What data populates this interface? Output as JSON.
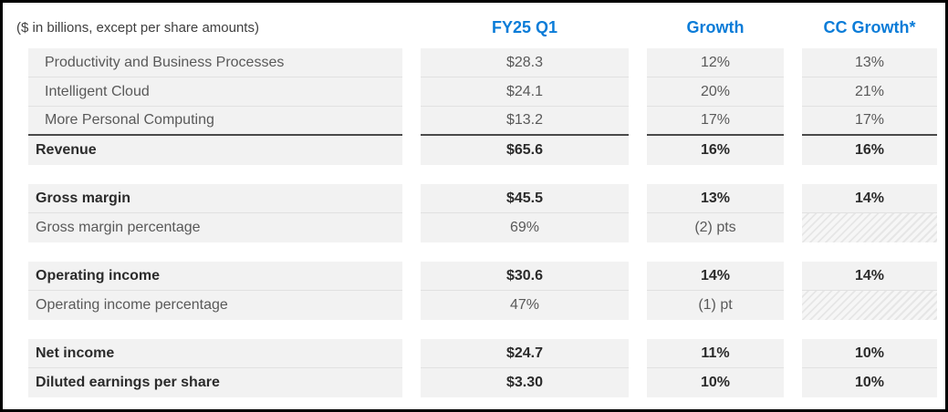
{
  "accent_color": "#0b7cd8",
  "row_background_color": "#f2f2f2",
  "chart_data": {
    "type": "table",
    "caption": "($ in billions, except per share amounts)",
    "column_headers": [
      "FY25 Q1",
      "Growth",
      "CC Growth*"
    ],
    "row_groups": [
      {
        "rows": [
          {
            "label": "Productivity and Business Processes",
            "fy25_q1": "$28.3",
            "growth": "12%",
            "cc_growth": "13%",
            "bold": false,
            "indent": true
          },
          {
            "label": "Intelligent Cloud",
            "fy25_q1": "$24.1",
            "growth": "20%",
            "cc_growth": "21%",
            "bold": false,
            "indent": true
          },
          {
            "label": "More Personal Computing",
            "fy25_q1": "$13.2",
            "growth": "17%",
            "cc_growth": "17%",
            "bold": false,
            "indent": true,
            "strong_divider_below": true
          },
          {
            "label": "Revenue",
            "fy25_q1": "$65.6",
            "growth": "16%",
            "cc_growth": "16%",
            "bold": true
          }
        ]
      },
      {
        "rows": [
          {
            "label": "Gross margin",
            "fy25_q1": "$45.5",
            "growth": "13%",
            "cc_growth": "14%",
            "bold": true
          },
          {
            "label": "Gross margin percentage",
            "fy25_q1": "69%",
            "growth": "(2) pts",
            "cc_growth": "",
            "cc_hatched": true,
            "bold": false
          }
        ]
      },
      {
        "rows": [
          {
            "label": "Operating income",
            "fy25_q1": "$30.6",
            "growth": "14%",
            "cc_growth": "14%",
            "bold": true
          },
          {
            "label": "Operating income percentage",
            "fy25_q1": "47%",
            "growth": "(1) pt",
            "cc_growth": "",
            "cc_hatched": true,
            "bold": false
          }
        ]
      },
      {
        "rows": [
          {
            "label": "Net income",
            "fy25_q1": "$24.7",
            "growth": "11%",
            "cc_growth": "10%",
            "bold": true
          },
          {
            "label": "Diluted earnings per share",
            "fy25_q1": "$3.30",
            "growth": "10%",
            "cc_growth": "10%",
            "bold": true
          }
        ]
      }
    ]
  }
}
